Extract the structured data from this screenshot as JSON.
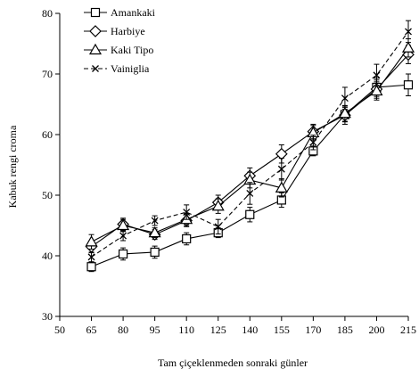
{
  "chart_data": {
    "type": "line",
    "title": "",
    "xlabel": "Tam çiçeklenmeden sonraki günler",
    "ylabel": "Kabuk rengi croma",
    "xlim": [
      50,
      215
    ],
    "ylim": [
      30,
      80
    ],
    "x_ticks": [
      "50",
      "65",
      "80",
      "95",
      "110",
      "125",
      "140",
      "155",
      "170",
      "185",
      "200",
      "215"
    ],
    "y_ticks": [
      "30",
      "40",
      "50",
      "60",
      "70",
      "80"
    ],
    "grid": false,
    "legend_position": "top-left",
    "x": [
      65,
      80,
      95,
      110,
      125,
      140,
      155,
      170,
      185,
      200,
      215
    ],
    "series": [
      {
        "name": "Amankaki",
        "marker": "square",
        "line": "solid",
        "values": [
          38.2,
          40.3,
          40.6,
          42.8,
          43.8,
          46.8,
          49.2,
          57.3,
          63.3,
          67.8,
          68.2
        ],
        "errors": [
          0.8,
          1.0,
          1.0,
          1.0,
          0.8,
          1.2,
          1.2,
          0.8,
          1.2,
          1.5,
          1.8
        ]
      },
      {
        "name": "Harbiye",
        "marker": "diamond",
        "line": "solid",
        "values": [
          41.5,
          45.2,
          43.5,
          45.8,
          48.8,
          53.2,
          56.8,
          60.5,
          63.2,
          67.5,
          73.2
        ],
        "errors": [
          1.0,
          1.0,
          0.8,
          1.0,
          1.2,
          1.3,
          1.5,
          1.2,
          1.5,
          1.5,
          1.5
        ]
      },
      {
        "name": "Kaki Tipo",
        "marker": "triangle",
        "line": "solid",
        "values": [
          42.3,
          45.0,
          43.8,
          46.0,
          48.2,
          52.5,
          51.2,
          60.3,
          63.5,
          67.2,
          74.3
        ],
        "errors": [
          1.2,
          1.0,
          0.8,
          1.0,
          1.2,
          1.3,
          1.5,
          1.2,
          1.3,
          1.5,
          1.5
        ]
      },
      {
        "name": "Vainiglia",
        "marker": "x",
        "line": "dashed",
        "values": [
          39.8,
          43.3,
          45.8,
          47.2,
          44.8,
          50.3,
          54.3,
          58.7,
          66.0,
          69.8,
          77.0
        ],
        "errors": [
          0.8,
          0.8,
          0.8,
          1.2,
          1.2,
          1.8,
          1.8,
          1.2,
          1.8,
          1.8,
          1.8
        ]
      }
    ]
  }
}
